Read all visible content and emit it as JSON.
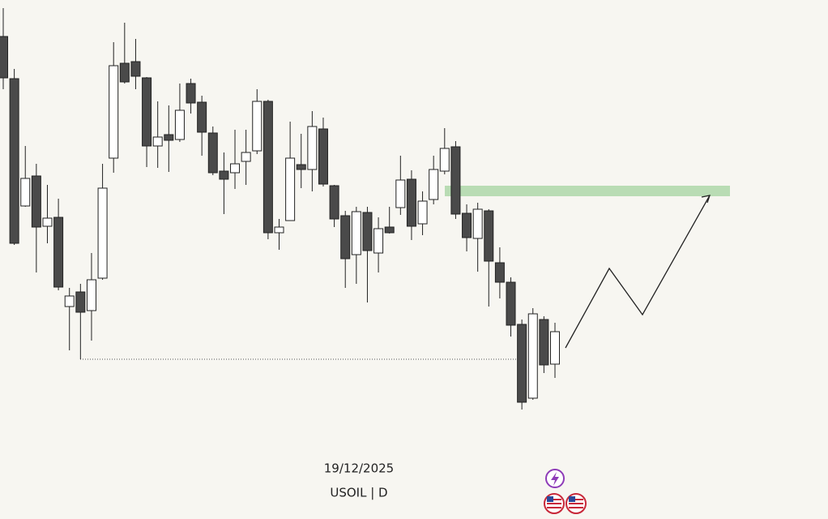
{
  "chart_data": {
    "type": "candlestick",
    "date": "19/12/2025",
    "symbol": "USOIL | D",
    "ylim": [
      0,
      640
    ],
    "up_color": "#ffffff",
    "down_color": "#4a4a4a",
    "open": [
      595,
      543,
      386,
      423,
      361,
      372,
      262,
      280,
      257,
      297,
      445,
      562,
      564,
      544,
      460,
      474,
      468,
      537,
      514,
      476,
      429,
      427,
      441,
      454,
      515,
      353,
      368,
      437,
      431,
      481,
      411,
      374,
      326,
      378,
      328,
      360,
      384,
      419,
      364,
      394,
      429,
      459,
      377,
      346,
      380,
      316,
      292,
      240,
      149,
      246,
      191
    ],
    "high": [
      630,
      555,
      460,
      438,
      412,
      395,
      285,
      290,
      328,
      438,
      588,
      612,
      592,
      545,
      515,
      510,
      537,
      543,
      522,
      484,
      452,
      480,
      480,
      530,
      517,
      370,
      490,
      475,
      503,
      495,
      412,
      380,
      385,
      385,
      372,
      385,
      448,
      430,
      404,
      448,
      482,
      466,
      388,
      390,
      382,
      335,
      298,
      246,
      260,
      250,
      242
    ],
    "low": [
      530,
      338,
      385,
      304,
      340,
      282,
      208,
      197,
      220,
      295,
      427,
      537,
      530,
      434,
      433,
      428,
      465,
      500,
      448,
      424,
      376,
      407,
      412,
      450,
      345,
      332,
      368,
      408,
      404,
      410,
      360,
      285,
      290,
      267,
      304,
      352,
      375,
      344,
      350,
      388,
      425,
      370,
      330,
      305,
      262,
      272,
      225,
      135,
      147,
      180,
      174
    ],
    "close": [
      544,
      340,
      420,
      360,
      371,
      286,
      275,
      255,
      295,
      408,
      559,
      539,
      546,
      460,
      471,
      467,
      504,
      513,
      477,
      427,
      419,
      438,
      452,
      515,
      353,
      360,
      445,
      431,
      484,
      413,
      370,
      321,
      379,
      331,
      358,
      353,
      418,
      361,
      392,
      431,
      457,
      376,
      347,
      382,
      318,
      292,
      239,
      144,
      253,
      190,
      231
    ]
  }
}
